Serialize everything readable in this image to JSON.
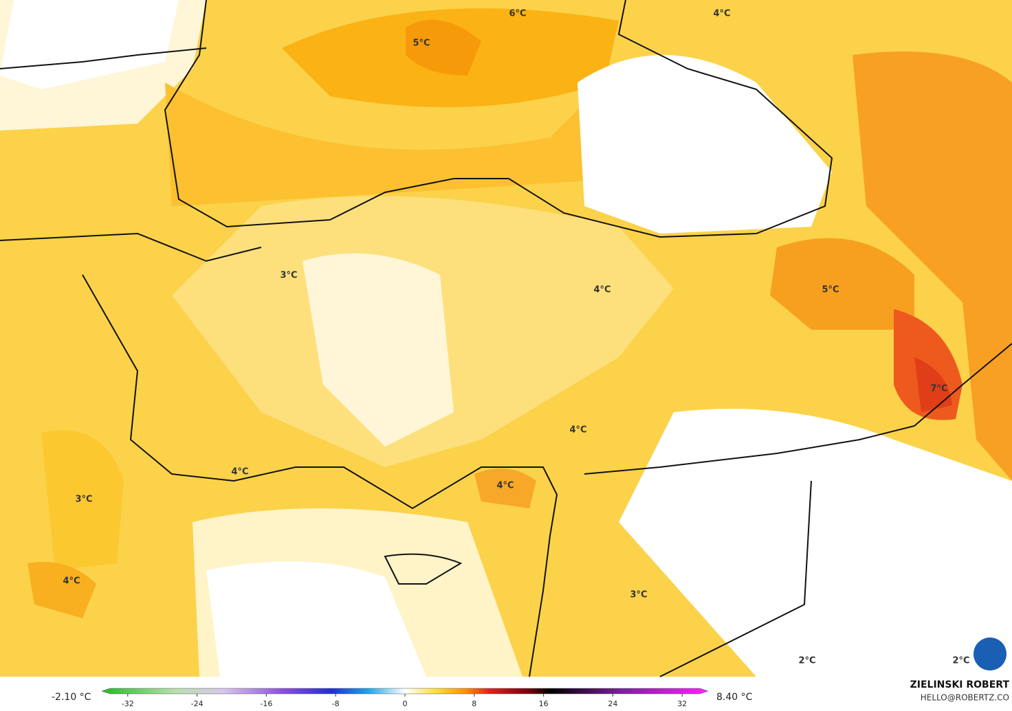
{
  "map": {
    "labels": [
      "6°C",
      "4°C",
      "5°C",
      "3°C",
      "4°C",
      "5°C",
      "7°C",
      "4°C",
      "4°C",
      "4°C",
      "3°C",
      "4°C",
      "3°C",
      "2°C",
      "2°C"
    ],
    "colorbar": {
      "min_label": "-2.10 °C",
      "max_label": "8.40 °C",
      "lim": [
        -35,
        35
      ],
      "ticks": [
        -32,
        -24,
        -16,
        -8,
        0,
        8,
        16,
        24,
        32
      ]
    },
    "author": "ZIELINSKI ROBERT",
    "contact": "HELLO@ROBERTZ.CO"
  }
}
